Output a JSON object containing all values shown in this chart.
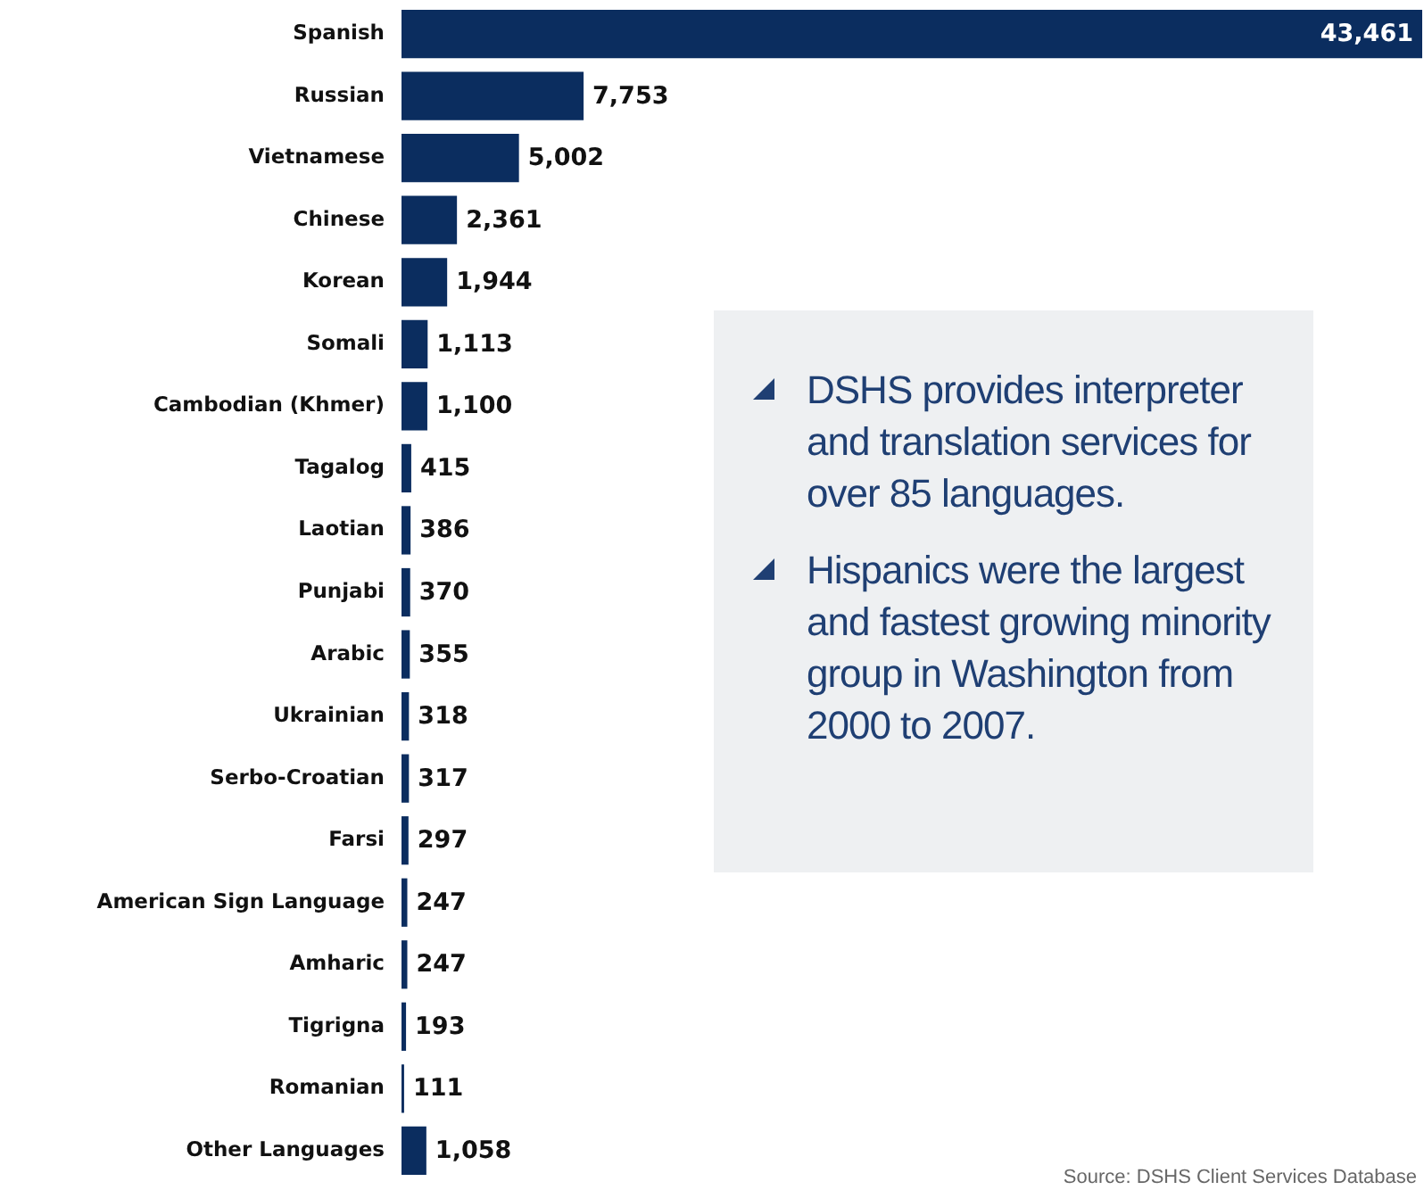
{
  "chart_data": {
    "type": "bar",
    "orientation": "horizontal",
    "color": "#0b2d5f",
    "value_labels": [
      "43,461",
      "7,753",
      "5,002",
      "2,361",
      "1,944",
      "1,113",
      "1,100",
      "415",
      "386",
      "370",
      "355",
      "318",
      "317",
      "297",
      "247",
      "247",
      "193",
      "111",
      "1,058"
    ],
    "categories": [
      "Spanish",
      "Russian",
      "Vietnamese",
      "Chinese",
      "Korean",
      "Somali",
      "Cambodian (Khmer)",
      "Tagalog",
      "Laotian",
      "Punjabi",
      "Arabic",
      "Ukrainian",
      "Serbo-Croatian",
      "Farsi",
      "American Sign Language",
      "Amharic",
      "Tigrigna",
      "Romanian",
      "Other Languages"
    ],
    "values": [
      43461,
      7753,
      5002,
      2361,
      1944,
      1113,
      1100,
      415,
      386,
      370,
      355,
      318,
      317,
      297,
      247,
      247,
      193,
      111,
      1058
    ],
    "annotations": [
      "DSHS provides interpreter and translation services for over 85 languages.",
      "Hispanics were the largest and fastest growing minority group in Washington from 2000 to 2007.",
      "Source: DSHS Client Services Database"
    ]
  }
}
